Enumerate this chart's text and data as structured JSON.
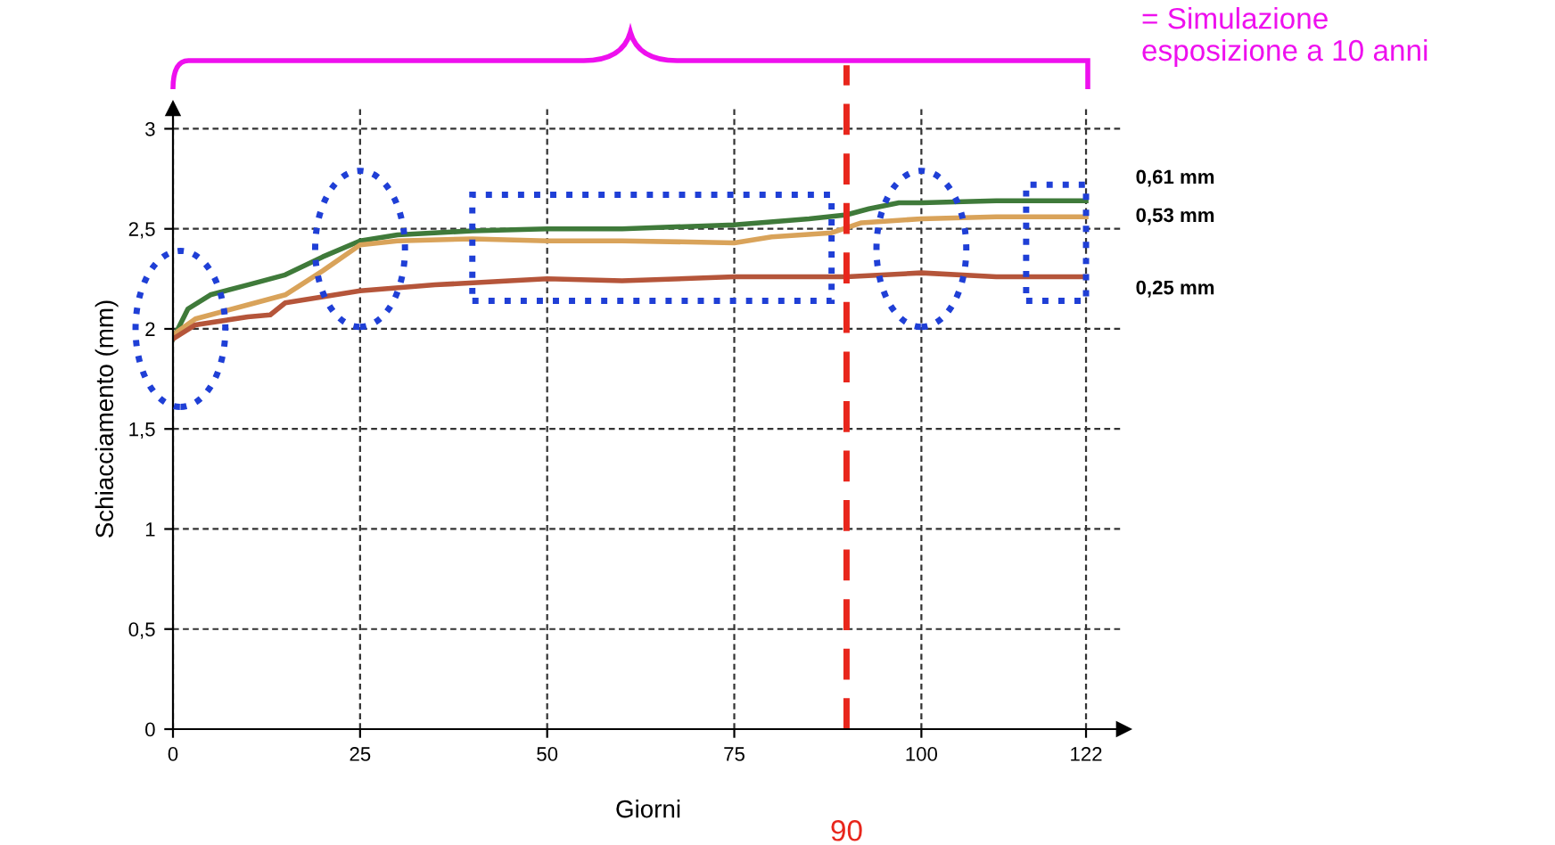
{
  "chart_data": {
    "type": "line",
    "xlabel": "Giorni",
    "ylabel": "Schiacciamento (mm)",
    "xlim": [
      0,
      127
    ],
    "xticks": [
      0,
      25,
      50,
      75,
      100,
      122
    ],
    "ylim": [
      0,
      3.1
    ],
    "yticks": [
      0,
      {
        "value": 0.5,
        "label": "0,5"
      },
      1,
      {
        "value": 1.5,
        "label": "1,5"
      },
      2,
      {
        "value": 2.5,
        "label": "2,5"
      },
      3
    ],
    "grid": true,
    "legend": false,
    "line_style": "solid",
    "marker": "none",
    "series": [
      {
        "name": "0,61 mm",
        "color": "#3f7a3a",
        "x": [
          0,
          2,
          5,
          10,
          15,
          20,
          25,
          30,
          40,
          50,
          60,
          75,
          85,
          90,
          93,
          97,
          100,
          110,
          122
        ],
        "values": [
          1.95,
          2.1,
          2.17,
          2.22,
          2.27,
          2.36,
          2.44,
          2.47,
          2.49,
          2.5,
          2.5,
          2.52,
          2.55,
          2.57,
          2.6,
          2.63,
          2.63,
          2.64,
          2.64
        ]
      },
      {
        "name": "0,53 mm",
        "color": "#d9a35a",
        "x": [
          0,
          3,
          10,
          15,
          20,
          25,
          30,
          40,
          50,
          60,
          75,
          80,
          88,
          92,
          100,
          110,
          122
        ],
        "values": [
          1.97,
          2.05,
          2.12,
          2.17,
          2.29,
          2.42,
          2.44,
          2.45,
          2.44,
          2.44,
          2.43,
          2.46,
          2.48,
          2.53,
          2.55,
          2.56,
          2.56
        ]
      },
      {
        "name": "0,25 mm",
        "color": "#b5553a",
        "x": [
          0,
          3,
          10,
          13,
          15,
          20,
          25,
          35,
          45,
          50,
          60,
          75,
          90,
          100,
          110,
          122
        ],
        "values": [
          1.95,
          2.02,
          2.06,
          2.07,
          2.13,
          2.16,
          2.19,
          2.22,
          2.24,
          2.25,
          2.24,
          2.26,
          2.26,
          2.28,
          2.26,
          2.26
        ]
      }
    ],
    "ref_lines": [
      {
        "axis": "x",
        "value": 90,
        "label": "90",
        "color": "#e8261c",
        "line_style": "dashed"
      }
    ],
    "annotations": [
      "= Simulazione\nesposizione a 10 anni"
    ]
  }
}
